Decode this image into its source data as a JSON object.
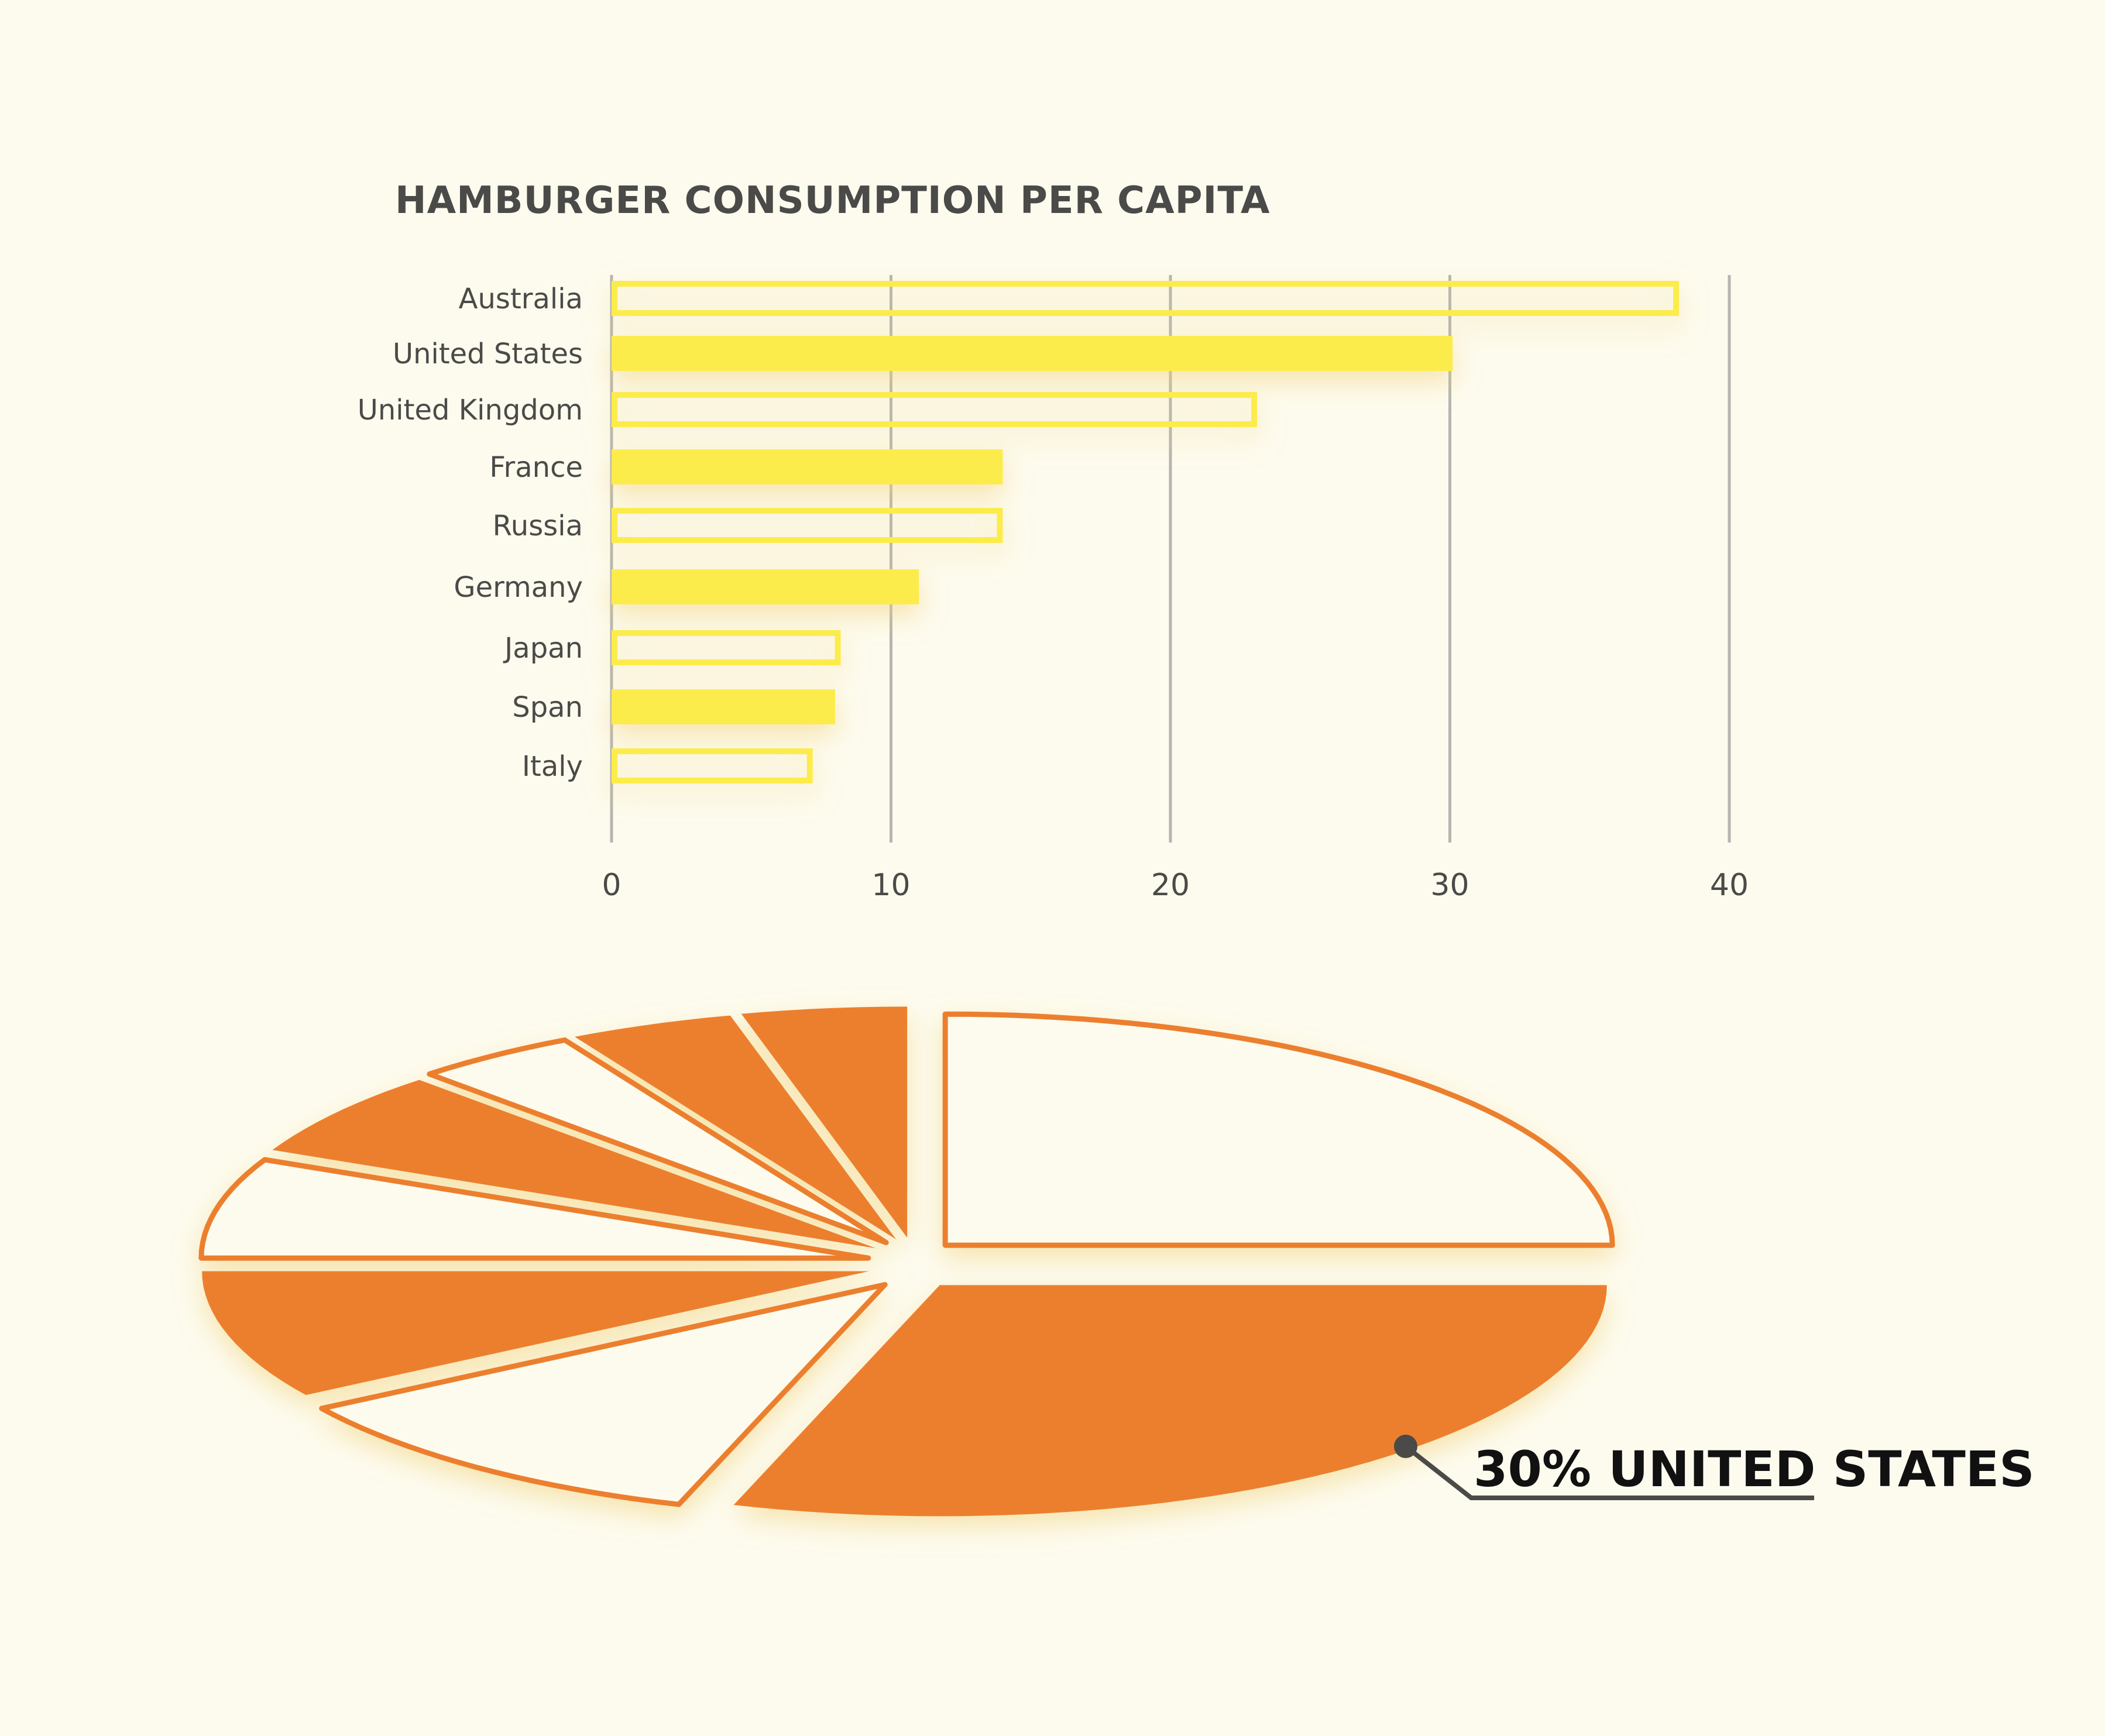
{
  "chart_data": [
    {
      "type": "bar",
      "orientation": "horizontal",
      "title": "HAMBURGER CONSUMPTION PER CAPITA",
      "categories": [
        "Australia",
        "United States",
        "United Kingdom",
        "France",
        "Russia",
        "Germany",
        "Japan",
        "Span",
        "Italy"
      ],
      "values": [
        38.2,
        30.1,
        23.1,
        14,
        14,
        11,
        8.2,
        8,
        7.2
      ],
      "styles": [
        "outline",
        "filled",
        "outline",
        "filled",
        "outline",
        "filled",
        "outline",
        "filled",
        "outline"
      ],
      "xlim": [
        0,
        40
      ],
      "xticks": [
        "0",
        "10",
        "20",
        "30",
        "40"
      ],
      "grid": true,
      "colors": {
        "bar": "#fcec4c",
        "grid": "#b5b5b1",
        "text": "#4a4a48"
      }
    },
    {
      "type": "pie",
      "style": "exploded, perspective",
      "slices": [
        {
          "value": 25,
          "style": "outline"
        },
        {
          "value": 30,
          "style": "filled",
          "label": "30% UNITED STATES"
        },
        {
          "value": 11,
          "style": "outline"
        },
        {
          "value": 9,
          "style": "filled"
        },
        {
          "value": 7,
          "style": "outline"
        },
        {
          "value": 6,
          "style": "filled"
        },
        {
          "value": 4,
          "style": "outline"
        },
        {
          "value": 4,
          "style": "filled"
        },
        {
          "value": 4,
          "style": "filled"
        }
      ],
      "annotation": "30% UNITED STATES",
      "colors": {
        "slice": "#ec7f2e",
        "annotation_line": "#4a4a48"
      }
    }
  ]
}
